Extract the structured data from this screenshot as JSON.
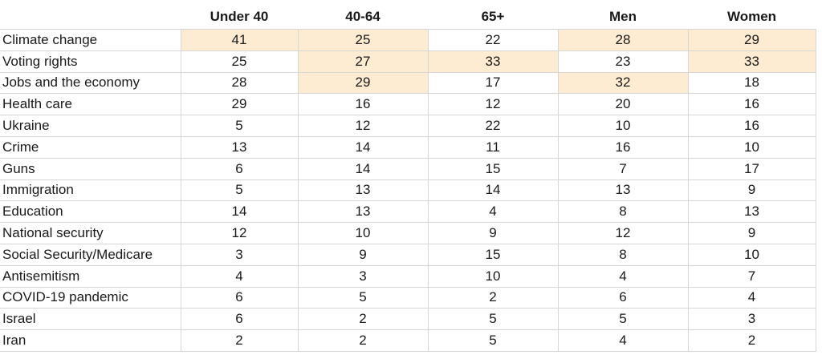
{
  "chart_data": {
    "type": "table",
    "columns": [
      "Under 40",
      "40-64",
      "65+",
      "Men",
      "Women"
    ],
    "highlight_color": "#fdebd2",
    "rows": [
      {
        "label": "Climate change",
        "values": [
          41,
          25,
          22,
          28,
          29
        ],
        "highlighted": [
          true,
          true,
          false,
          true,
          true
        ]
      },
      {
        "label": "Voting rights",
        "values": [
          25,
          27,
          33,
          23,
          33
        ],
        "highlighted": [
          false,
          true,
          true,
          false,
          true
        ]
      },
      {
        "label": "Jobs and the economy",
        "values": [
          28,
          29,
          17,
          32,
          18
        ],
        "highlighted": [
          false,
          true,
          false,
          true,
          false
        ]
      },
      {
        "label": "Health care",
        "values": [
          29,
          16,
          12,
          20,
          16
        ],
        "highlighted": [
          false,
          false,
          false,
          false,
          false
        ]
      },
      {
        "label": "Ukraine",
        "values": [
          5,
          12,
          22,
          10,
          16
        ],
        "highlighted": [
          false,
          false,
          false,
          false,
          false
        ]
      },
      {
        "label": "Crime",
        "values": [
          13,
          14,
          11,
          16,
          10
        ],
        "highlighted": [
          false,
          false,
          false,
          false,
          false
        ]
      },
      {
        "label": "Guns",
        "values": [
          6,
          14,
          15,
          7,
          17
        ],
        "highlighted": [
          false,
          false,
          false,
          false,
          false
        ]
      },
      {
        "label": "Immigration",
        "values": [
          5,
          13,
          14,
          13,
          9
        ],
        "highlighted": [
          false,
          false,
          false,
          false,
          false
        ]
      },
      {
        "label": "Education",
        "values": [
          14,
          13,
          4,
          8,
          13
        ],
        "highlighted": [
          false,
          false,
          false,
          false,
          false
        ]
      },
      {
        "label": "National security",
        "values": [
          12,
          10,
          9,
          12,
          9
        ],
        "highlighted": [
          false,
          false,
          false,
          false,
          false
        ]
      },
      {
        "label": "Social Security/Medicare",
        "values": [
          3,
          9,
          15,
          8,
          10
        ],
        "highlighted": [
          false,
          false,
          false,
          false,
          false
        ]
      },
      {
        "label": "Antisemitism",
        "values": [
          4,
          3,
          10,
          4,
          7
        ],
        "highlighted": [
          false,
          false,
          false,
          false,
          false
        ]
      },
      {
        "label": "COVID-19 pandemic",
        "values": [
          6,
          5,
          2,
          6,
          4
        ],
        "highlighted": [
          false,
          false,
          false,
          false,
          false
        ]
      },
      {
        "label": "Israel",
        "values": [
          6,
          2,
          5,
          5,
          3
        ],
        "highlighted": [
          false,
          false,
          false,
          false,
          false
        ]
      },
      {
        "label": "Iran",
        "values": [
          2,
          2,
          5,
          4,
          2
        ],
        "highlighted": [
          false,
          false,
          false,
          false,
          false
        ]
      }
    ]
  }
}
